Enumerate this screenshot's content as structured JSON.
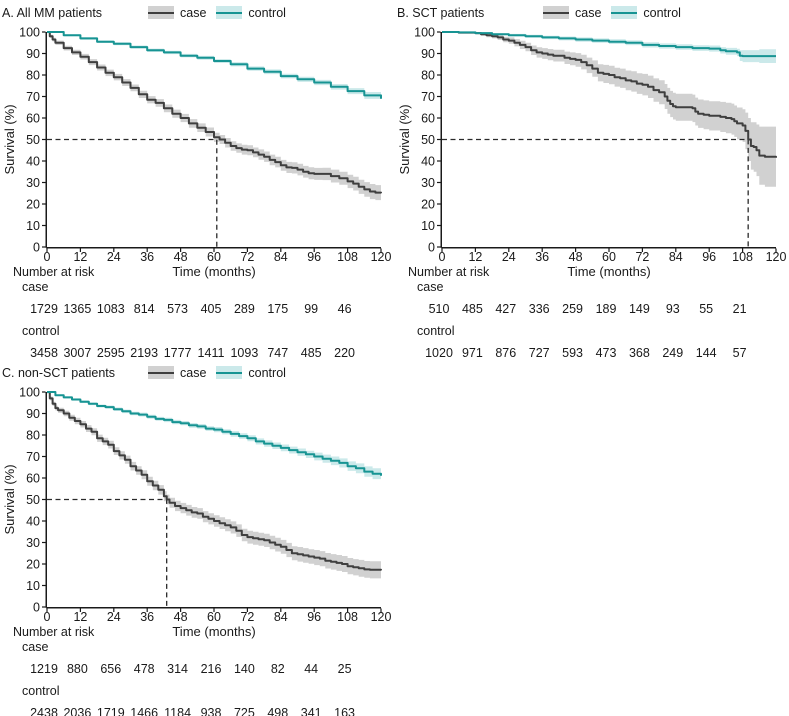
{
  "style": {
    "case_color": "#3f3f3f",
    "case_band": "#d1d1d1",
    "control_color": "#179493",
    "control_band": "#cbe9ea",
    "axis_color": "#1a1a1a",
    "guide_color": "#2a2a2a",
    "text_color": "#1a1a1a"
  },
  "legend": {
    "case": "case",
    "control": "control"
  },
  "chart_data": [
    {
      "type": "line",
      "subtype": "kaplan-meier-step",
      "title": "A. All MM patients",
      "xlabel": "Time (months)",
      "ylabel": "Survival (%)",
      "xlim": [
        0,
        120
      ],
      "ylim": [
        0,
        100
      ],
      "xticks": [
        0,
        12,
        24,
        36,
        48,
        60,
        72,
        84,
        96,
        108,
        120
      ],
      "yticks": [
        0,
        10,
        20,
        30,
        40,
        50,
        60,
        70,
        80,
        90,
        100
      ],
      "legend_position": "top",
      "grid": false,
      "median_guide": {
        "x": 61,
        "y": 50
      },
      "series": [
        {
          "name": "case",
          "x": [
            0,
            1,
            2,
            3,
            6,
            9,
            12,
            15,
            18,
            21,
            24,
            27,
            30,
            33,
            36,
            39,
            42,
            45,
            48,
            51,
            54,
            57,
            60,
            62,
            64,
            66,
            68,
            70,
            72,
            74,
            76,
            78,
            80,
            82,
            84,
            86,
            88,
            90,
            92,
            94,
            96,
            99,
            102,
            105,
            108,
            110,
            112,
            114,
            116,
            118,
            120
          ],
          "y": [
            100,
            98,
            96.5,
            95,
            92.5,
            90.5,
            88.5,
            86,
            83.5,
            81,
            79,
            76.5,
            74,
            71,
            68.5,
            67,
            64.5,
            62,
            60,
            57.5,
            55.5,
            53.5,
            51,
            50,
            48.5,
            47,
            46,
            45.3,
            45,
            44,
            43,
            42,
            40.5,
            39.5,
            38,
            37,
            36.8,
            36,
            35,
            34.3,
            34,
            34,
            33,
            32,
            30.5,
            29.5,
            28,
            26.8,
            25.8,
            25.3,
            25
          ],
          "band": [
            0.5,
            0.8,
            0.9,
            1,
            1.1,
            1.2,
            1.3,
            1.4,
            1.4,
            1.5,
            1.5,
            1.6,
            1.6,
            1.7,
            1.7,
            1.8,
            1.8,
            1.9,
            1.9,
            2,
            2,
            2.1,
            2.1,
            2.1,
            2.2,
            2.2,
            2.2,
            2.3,
            2.3,
            2.3,
            2.4,
            2.4,
            2.5,
            2.5,
            2.5,
            2.6,
            2.6,
            2.7,
            2.7,
            2.8,
            2.8,
            2.9,
            3,
            3,
            3.1,
            3.2,
            3.3,
            3.4,
            3.5,
            3.5,
            3.6
          ]
        },
        {
          "name": "control",
          "x": [
            0,
            6,
            12,
            18,
            24,
            30,
            36,
            42,
            48,
            54,
            60,
            66,
            72,
            78,
            84,
            90,
            96,
            102,
            108,
            114,
            120
          ],
          "y": [
            100,
            98.5,
            97,
            95.5,
            94.5,
            93,
            91.5,
            90.5,
            89,
            88,
            86.5,
            85,
            83,
            81.5,
            79.5,
            78,
            76.5,
            74.5,
            72.5,
            70.5,
            69
          ],
          "band": [
            0.3,
            0.5,
            0.6,
            0.6,
            0.7,
            0.7,
            0.8,
            0.8,
            0.8,
            0.9,
            0.9,
            1,
            1,
            1.1,
            1.1,
            1.2,
            1.2,
            1.3,
            1.4,
            1.6,
            1.8
          ]
        }
      ],
      "risk_table": {
        "label": "Number at risk",
        "times": [
          0,
          12,
          24,
          36,
          48,
          60,
          72,
          84,
          96,
          108
        ],
        "rows": [
          {
            "name": "case",
            "values": [
              1729,
              1365,
              1083,
              814,
              573,
              405,
              289,
              175,
              99,
              46
            ]
          },
          {
            "name": "control",
            "values": [
              3458,
              3007,
              2595,
              2193,
              1777,
              1411,
              1093,
              747,
              485,
              220
            ]
          }
        ]
      }
    },
    {
      "type": "line",
      "subtype": "kaplan-meier-step",
      "title": "B. SCT patients",
      "xlabel": "Time (months)",
      "ylabel": "Survival (%)",
      "xlim": [
        0,
        120
      ],
      "ylim": [
        0,
        100
      ],
      "xticks": [
        0,
        12,
        24,
        36,
        48,
        60,
        72,
        84,
        96,
        108,
        120
      ],
      "yticks": [
        0,
        10,
        20,
        30,
        40,
        50,
        60,
        70,
        80,
        90,
        100
      ],
      "legend_position": "top",
      "grid": false,
      "median_guide": {
        "x": 110,
        "y": 50
      },
      "series": [
        {
          "name": "case",
          "x": [
            0,
            6,
            12,
            14,
            16,
            18,
            20,
            22,
            24,
            26,
            28,
            30,
            32,
            34,
            36,
            38,
            40,
            44,
            46,
            48,
            50,
            52,
            54,
            56,
            58,
            60,
            62,
            64,
            66,
            68,
            70,
            72,
            74,
            76,
            78,
            80,
            81,
            82,
            83,
            84,
            88,
            90,
            91,
            92,
            94,
            96,
            100,
            102,
            104,
            105,
            106,
            108,
            109,
            110,
            111,
            112,
            113,
            114,
            116,
            120
          ],
          "y": [
            100,
            99.7,
            99.5,
            99,
            98.5,
            98,
            97.5,
            96.5,
            96,
            95,
            94,
            93,
            91.5,
            90.5,
            90,
            89.5,
            89,
            88,
            87.5,
            87,
            86,
            84.5,
            83,
            81,
            80.5,
            80,
            79,
            78.5,
            77.5,
            77,
            76,
            75.5,
            74.5,
            73,
            72,
            70,
            68,
            66.5,
            65.5,
            65,
            65,
            64.5,
            63,
            62,
            61.5,
            61,
            60.5,
            60,
            59.5,
            58.5,
            57.5,
            56.5,
            54,
            50,
            47,
            46.5,
            45,
            42.5,
            42,
            41.5
          ],
          "band": [
            0.3,
            0.4,
            0.5,
            0.7,
            0.9,
            1,
            1.2,
            1.3,
            1.5,
            1.7,
            1.9,
            2,
            2.2,
            2.4,
            2.5,
            2.6,
            2.7,
            2.9,
            3,
            3.2,
            3.4,
            3.6,
            3.8,
            4,
            4.2,
            4.3,
            4.4,
            4.5,
            4.6,
            4.7,
            4.8,
            5,
            5.2,
            5.4,
            5.6,
            5.8,
            6,
            6.1,
            6.2,
            6.3,
            6.3,
            6.4,
            6.5,
            6.6,
            6.7,
            6.8,
            7,
            7.1,
            7.2,
            7.3,
            7.4,
            7.6,
            8.5,
            10,
            11,
            11.5,
            12,
            13.5,
            14,
            14.5
          ]
        },
        {
          "name": "control",
          "x": [
            0,
            6,
            12,
            18,
            24,
            30,
            36,
            42,
            48,
            54,
            60,
            66,
            72,
            78,
            84,
            90,
            96,
            100,
            102,
            104,
            106,
            107,
            108,
            114,
            120
          ],
          "y": [
            100,
            99.8,
            99.5,
            99,
            98.5,
            98,
            97.5,
            97,
            96.5,
            96,
            95.5,
            95,
            94,
            93.5,
            93,
            92.5,
            92.3,
            91.5,
            91,
            91,
            90.5,
            89,
            88.8,
            88.8,
            88.8
          ],
          "band": [
            0.2,
            0.3,
            0.4,
            0.5,
            0.6,
            0.7,
            0.8,
            0.9,
            1,
            1,
            1.1,
            1.1,
            1.2,
            1.2,
            1.3,
            1.3,
            1.4,
            1.5,
            1.6,
            1.6,
            1.7,
            2.5,
            2.8,
            3.2,
            3.5
          ]
        }
      ],
      "risk_table": {
        "label": "Number at risk",
        "times": [
          0,
          12,
          24,
          36,
          48,
          60,
          72,
          84,
          96,
          108
        ],
        "rows": [
          {
            "name": "case",
            "values": [
              510,
              485,
              427,
              336,
              259,
              189,
              149,
              93,
              55,
              21
            ]
          },
          {
            "name": "control",
            "values": [
              1020,
              971,
              876,
              727,
              593,
              473,
              368,
              249,
              144,
              57
            ]
          }
        ]
      }
    },
    {
      "type": "line",
      "subtype": "kaplan-meier-step",
      "title": "C. non-SCT patients",
      "xlabel": "Time (months)",
      "ylabel": "Survival (%)",
      "xlim": [
        0,
        120
      ],
      "ylim": [
        0,
        100
      ],
      "xticks": [
        0,
        12,
        24,
        36,
        48,
        60,
        72,
        84,
        96,
        108,
        120
      ],
      "yticks": [
        0,
        10,
        20,
        30,
        40,
        50,
        60,
        70,
        80,
        90,
        100
      ],
      "legend_position": "top",
      "grid": false,
      "median_guide": {
        "x": 43,
        "y": 50
      },
      "series": [
        {
          "name": "case",
          "x": [
            0,
            1,
            2,
            3,
            4,
            6,
            8,
            10,
            12,
            14,
            16,
            18,
            20,
            22,
            24,
            26,
            28,
            30,
            32,
            34,
            36,
            38,
            40,
            42,
            43,
            44,
            46,
            48,
            50,
            52,
            54,
            56,
            58,
            60,
            62,
            64,
            66,
            68,
            70,
            72,
            74,
            76,
            78,
            80,
            82,
            84,
            86,
            88,
            90,
            92,
            94,
            96,
            98,
            100,
            102,
            104,
            106,
            108,
            110,
            112,
            114,
            116,
            120
          ],
          "y": [
            100,
            97,
            94.5,
            92.5,
            91.5,
            90,
            88,
            86.5,
            85,
            83,
            81.5,
            78.5,
            77,
            75.5,
            72.5,
            70.5,
            68.5,
            65.5,
            63.5,
            61.5,
            58.5,
            56.5,
            54.5,
            51.5,
            50,
            48.5,
            47,
            46,
            45,
            44,
            43.5,
            42,
            41,
            40,
            39,
            38,
            37,
            35.5,
            33.5,
            32.5,
            32,
            31.5,
            31,
            30,
            29,
            28,
            26.5,
            25,
            24.5,
            24,
            23.5,
            23,
            22.5,
            21.5,
            21,
            20.5,
            20,
            19,
            18.5,
            18,
            17.5,
            17.3,
            17
          ],
          "band": [
            0.7,
            0.9,
            1,
            1.1,
            1.2,
            1.3,
            1.4,
            1.5,
            1.5,
            1.6,
            1.6,
            1.7,
            1.7,
            1.8,
            1.8,
            1.9,
            1.9,
            2,
            2,
            2.1,
            2.1,
            2.2,
            2.2,
            2.3,
            2.3,
            2.3,
            2.4,
            2.4,
            2.5,
            2.5,
            2.5,
            2.6,
            2.6,
            2.7,
            2.7,
            2.8,
            2.8,
            2.9,
            2.9,
            3,
            3,
            3,
            3.1,
            3.1,
            3.2,
            3.2,
            3.3,
            3.3,
            3.4,
            3.4,
            3.4,
            3.5,
            3.5,
            3.6,
            3.6,
            3.7,
            3.7,
            3.8,
            3.8,
            3.9,
            3.9,
            4,
            4
          ]
        },
        {
          "name": "control",
          "x": [
            0,
            3,
            6,
            9,
            12,
            15,
            18,
            21,
            24,
            27,
            30,
            33,
            36,
            39,
            42,
            45,
            48,
            51,
            54,
            57,
            60,
            63,
            66,
            69,
            72,
            75,
            78,
            81,
            84,
            87,
            90,
            93,
            96,
            99,
            102,
            105,
            108,
            111,
            114,
            117,
            120
          ],
          "y": [
            100,
            98.5,
            97.5,
            96.5,
            95.5,
            94.5,
            93.5,
            93,
            92,
            91,
            90,
            89.5,
            88.5,
            87.5,
            87,
            86,
            85.5,
            84.5,
            84,
            83,
            82.5,
            81.5,
            80.5,
            79.5,
            78.5,
            77,
            76,
            75,
            74,
            73,
            72,
            71,
            70,
            69,
            68,
            67,
            65.5,
            64.5,
            63,
            62,
            61
          ],
          "band": [
            0.3,
            0.4,
            0.5,
            0.5,
            0.6,
            0.6,
            0.7,
            0.7,
            0.8,
            0.8,
            0.8,
            0.9,
            0.9,
            0.9,
            1,
            1,
            1,
            1.1,
            1.1,
            1.1,
            1.2,
            1.2,
            1.3,
            1.3,
            1.4,
            1.4,
            1.5,
            1.5,
            1.6,
            1.6,
            1.7,
            1.7,
            1.8,
            1.9,
            2,
            2.1,
            2.2,
            2.3,
            2.4,
            2.5,
            2.6
          ]
        }
      ],
      "risk_table": {
        "label": "Number at risk",
        "times": [
          0,
          12,
          24,
          36,
          48,
          60,
          72,
          84,
          96,
          108
        ],
        "rows": [
          {
            "name": "case",
            "values": [
              1219,
              880,
              656,
              478,
              314,
              216,
              140,
              82,
              44,
              25
            ]
          },
          {
            "name": "control",
            "values": [
              2438,
              2036,
              1719,
              1466,
              1184,
              938,
              725,
              498,
              341,
              163
            ]
          }
        ]
      }
    }
  ]
}
